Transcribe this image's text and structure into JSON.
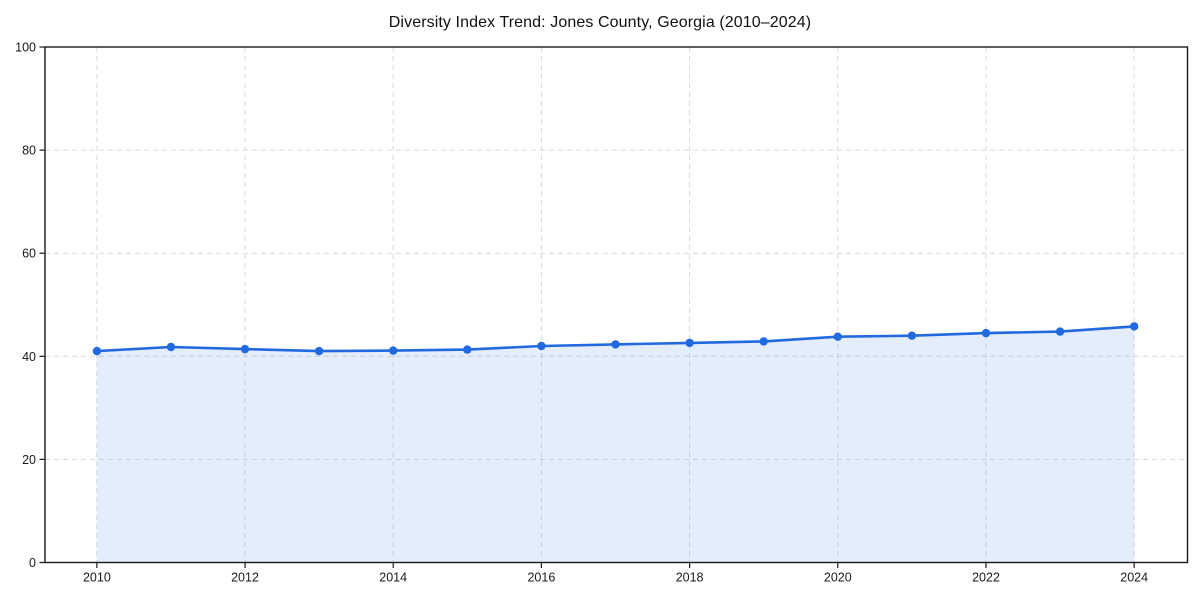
{
  "page": {
    "background_color": "#ffffff"
  },
  "chart_data": {
    "type": "area",
    "title": "Diversity Index Trend: Jones County, Georgia (2010–2024)",
    "series_name": "Diversity Index",
    "x": [
      2010,
      2011,
      2012,
      2013,
      2014,
      2015,
      2016,
      2017,
      2018,
      2019,
      2020,
      2021,
      2022,
      2023,
      2024
    ],
    "values": [
      41.0,
      41.8,
      41.4,
      41.0,
      41.1,
      41.3,
      42.0,
      42.3,
      42.6,
      42.9,
      43.8,
      44.0,
      44.5,
      44.8,
      45.8
    ],
    "xlabel": "",
    "ylabel": "",
    "xlim": [
      2009.3,
      2024.72
    ],
    "ylim": [
      0,
      100
    ],
    "xticks": [
      2010,
      2012,
      2014,
      2016,
      2018,
      2020,
      2022,
      2024
    ],
    "yticks": [
      0,
      20,
      40,
      60,
      80,
      100
    ],
    "grid": true,
    "grid_style": "dashed",
    "legend": "none",
    "marker": "circle",
    "marker_radius": 4.2,
    "colors": {
      "line": "#2269e0",
      "fill": "rgba(34, 105, 224, 0.12)",
      "grid": "#d9d9d9",
      "spine": "#1a1a1a",
      "text": "#1a1a1a",
      "title": "#111111"
    }
  }
}
